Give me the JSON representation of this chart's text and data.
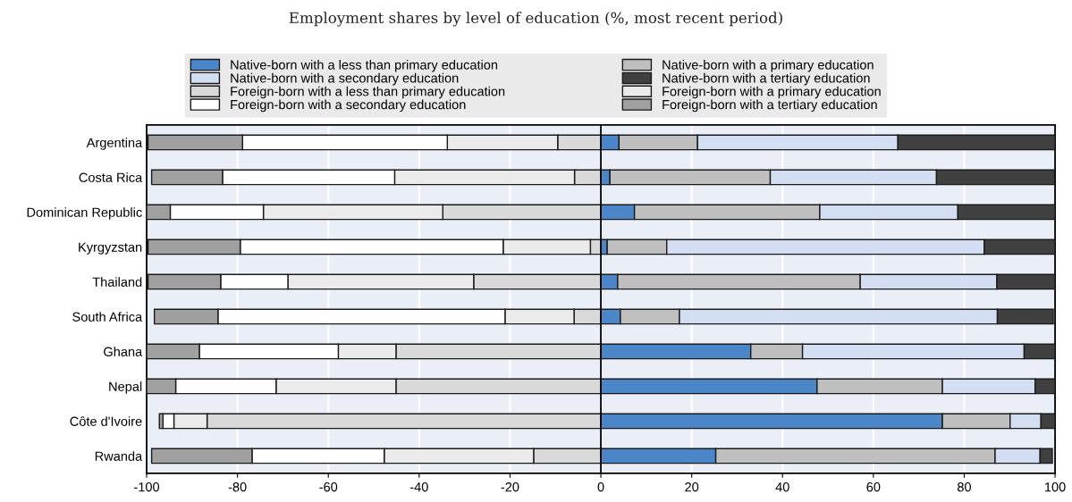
{
  "chart_data": {
    "type": "bar",
    "orientation": "horizontal",
    "stacked": true,
    "subtitle": "Employment shares by level of education (%, most recent period)",
    "categories": [
      "Argentina",
      "Costa Rica",
      "Dominican Republic",
      "Kyrgyzstan",
      "Thailand",
      "South Africa",
      "Ghana",
      "Nepal",
      "Côte d'Ivoire",
      "Rwanda"
    ],
    "series": [
      {
        "name": "Native-born with a less than primary education",
        "color": "#4a86c8",
        "values": [
          4.0,
          2.0,
          7.4,
          1.4,
          3.7,
          4.3,
          33.0,
          47.6,
          75.2,
          25.3
        ]
      },
      {
        "name": "Native-born with a primary education",
        "color": "#bfbfbf",
        "values": [
          17.3,
          35.3,
          40.8,
          13.1,
          53.4,
          13.0,
          11.4,
          27.6,
          14.9,
          61.5
        ]
      },
      {
        "name": "Native-born with a secondary education",
        "color": "#d3def2",
        "values": [
          44.1,
          36.6,
          30.4,
          69.9,
          30.1,
          70.0,
          48.8,
          20.4,
          6.8,
          9.9
        ]
      },
      {
        "name": "Native-born with a tertiary education",
        "color": "#404040",
        "values": [
          34.6,
          26.0,
          21.4,
          15.6,
          12.8,
          12.3,
          6.8,
          4.4,
          3.1,
          2.7
        ]
      },
      {
        "name": "Foreign-born with a less than primary education",
        "color": "#d9d9d9",
        "values": [
          -9.5,
          -5.8,
          -34.8,
          -2.3,
          -28.0,
          -5.9,
          -45.1,
          -45.1,
          -86.7,
          -14.8
        ]
      },
      {
        "name": "Foreign-born with a primary education",
        "color": "#ebebeb",
        "values": [
          -24.3,
          -39.6,
          -39.5,
          -19.2,
          -40.9,
          -15.2,
          -12.7,
          -26.4,
          -7.3,
          -32.9
        ]
      },
      {
        "name": "Foreign-born with a secondary education",
        "color": "#ffffff",
        "values": [
          -45.1,
          -37.9,
          -20.5,
          -57.9,
          -14.8,
          -63.2,
          -30.6,
          -22.1,
          -2.4,
          -29.1
        ]
      },
      {
        "name": "Foreign-born with a tertiary education",
        "color": "#a0a0a0",
        "values": [
          -20.8,
          -15.6,
          -5.2,
          -20.3,
          -16.0,
          -14.0,
          -11.6,
          -6.4,
          -0.8,
          -22.1
        ]
      }
    ],
    "xlim": [
      -100,
      100
    ],
    "xticks": [
      -100,
      -80,
      -60,
      -40,
      -20,
      0,
      20,
      40,
      60,
      80,
      100
    ],
    "ref_lines": [
      {
        "axis": "x",
        "value": 0,
        "color": "#000000"
      }
    ],
    "grid": "x",
    "legend": "top"
  }
}
